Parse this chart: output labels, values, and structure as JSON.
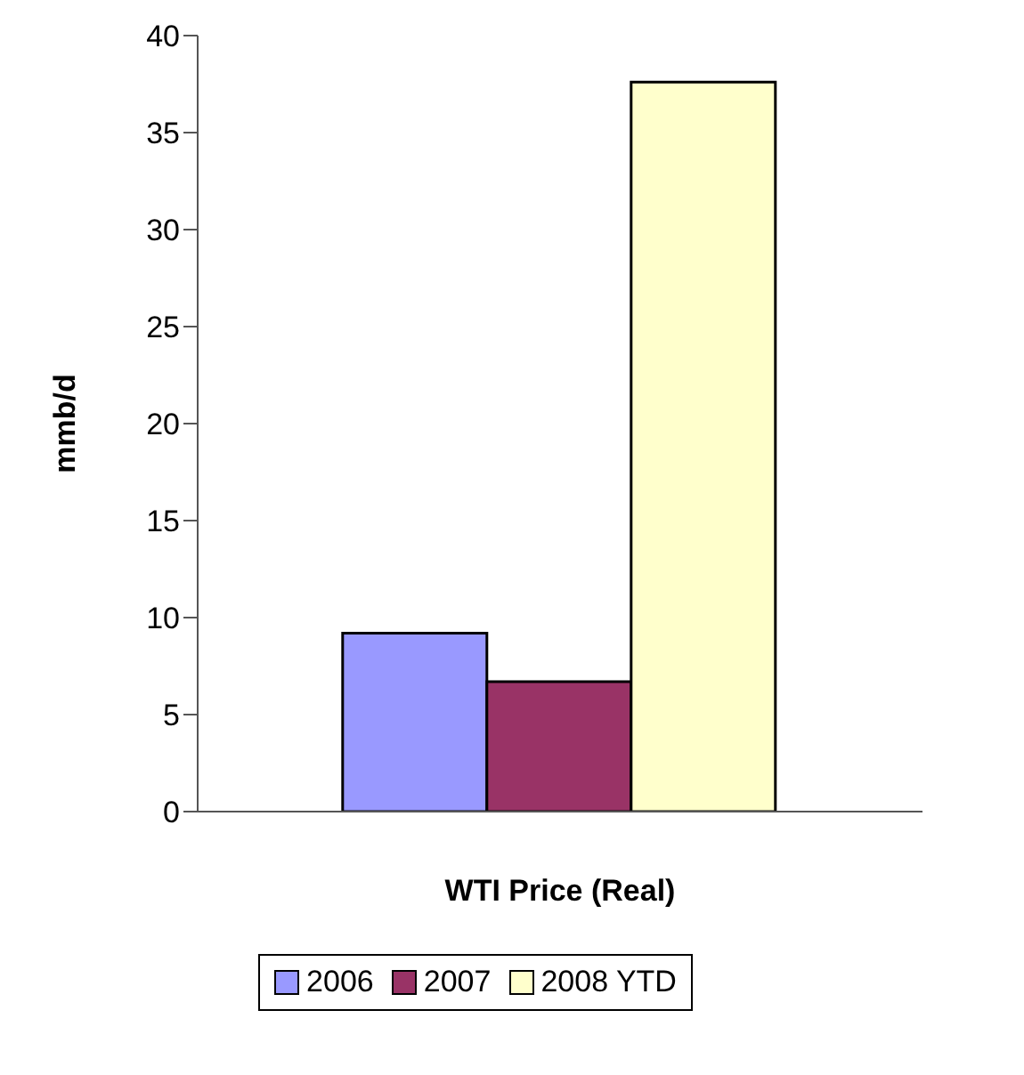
{
  "chart_data": {
    "type": "bar",
    "xlabel": "WTI Price (Real)",
    "ylabel": "mmb/d",
    "categories": [
      null
    ],
    "series": [
      {
        "name": "2006",
        "color": "#9999ff",
        "values": [
          9.2
        ]
      },
      {
        "name": "2007",
        "color": "#993366",
        "values": [
          6.7
        ]
      },
      {
        "name": "2008 YTD",
        "color": "#ffffcc",
        "values": [
          37.6
        ]
      }
    ],
    "ylim": [
      0,
      40
    ],
    "yticks": [
      0,
      5,
      10,
      15,
      20,
      25,
      30,
      35,
      40
    ],
    "grid": false,
    "legend": "bottom"
  }
}
